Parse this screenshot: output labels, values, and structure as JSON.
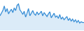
{
  "chart_data": {
    "type": "line",
    "x": [
      0,
      1,
      2,
      3,
      4,
      5,
      6,
      7,
      8,
      9,
      10,
      11,
      12,
      13,
      14,
      15,
      16,
      17,
      18,
      19,
      20,
      21,
      22,
      23,
      24,
      25,
      26,
      27,
      28,
      29,
      30,
      31,
      32,
      33,
      34,
      35,
      36,
      37,
      38,
      39,
      40,
      41,
      42,
      43,
      44,
      45,
      46,
      47,
      48,
      49,
      50,
      51,
      52,
      53,
      54,
      55,
      56,
      57,
      58,
      59
    ],
    "values": [
      22,
      26,
      30,
      37,
      28,
      33,
      25,
      29,
      32,
      27,
      34,
      30,
      38,
      40,
      31,
      28,
      24,
      29,
      20,
      26,
      33,
      22,
      27,
      30,
      25,
      23,
      28,
      24,
      26,
      29,
      22,
      27,
      24,
      21,
      25,
      28,
      19,
      23,
      26,
      20,
      22,
      18,
      24,
      17,
      20,
      16,
      19,
      21,
      15,
      18,
      14,
      17,
      13,
      16,
      12,
      15,
      11,
      13,
      12,
      12
    ],
    "color": "#3a8fd6",
    "xlim": [
      0,
      59
    ],
    "ylim": [
      0,
      45
    ],
    "grid": false,
    "tick_labels": false
  }
}
